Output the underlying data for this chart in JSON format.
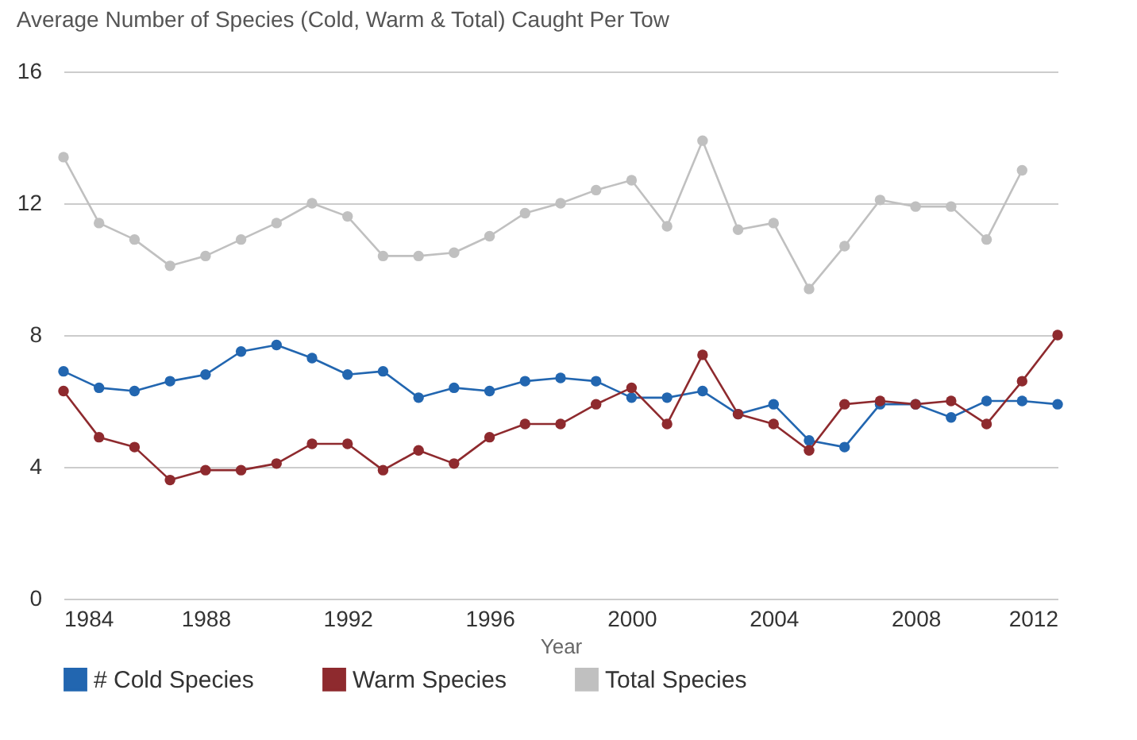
{
  "chart_data": {
    "type": "line",
    "title": "Average Number of Species (Cold, Warm & Total) Caught Per Tow",
    "xlabel": "Year",
    "x": [
      1984,
      1985,
      1986,
      1987,
      1988,
      1989,
      1990,
      1991,
      1992,
      1993,
      1994,
      1995,
      1996,
      1997,
      1998,
      1999,
      2000,
      2001,
      2002,
      2003,
      2004,
      2005,
      2006,
      2007,
      2008,
      2009,
      2010,
      2011,
      2012
    ],
    "series": [
      {
        "name": "# Cold Species",
        "color": "#2266b0",
        "values": [
          6.9,
          6.4,
          6.3,
          6.6,
          6.8,
          7.5,
          7.7,
          7.3,
          6.8,
          6.9,
          6.1,
          6.4,
          6.3,
          6.6,
          6.7,
          6.6,
          6.1,
          6.1,
          6.3,
          5.6,
          5.9,
          4.8,
          4.6,
          5.9,
          5.9,
          5.5,
          6.0,
          6.0,
          5.9
        ]
      },
      {
        "name": "Warm Species",
        "color": "#8e2a2e",
        "values": [
          6.3,
          4.9,
          4.6,
          3.6,
          3.9,
          3.9,
          4.1,
          4.7,
          4.7,
          3.9,
          4.5,
          4.1,
          4.9,
          5.3,
          5.3,
          5.9,
          6.4,
          5.3,
          7.4,
          5.6,
          5.3,
          4.5,
          5.9,
          6.0,
          5.9,
          6.0,
          5.3,
          6.6,
          8.0
        ]
      },
      {
        "name": "Total Species",
        "color": "#c0c0c0",
        "values": [
          13.4,
          11.4,
          10.9,
          10.1,
          10.4,
          10.9,
          11.4,
          12.0,
          11.6,
          10.4,
          10.4,
          10.5,
          11.0,
          11.7,
          12.0,
          12.4,
          12.7,
          11.3,
          13.9,
          11.2,
          11.4,
          9.4,
          10.7,
          12.1,
          11.9,
          11.9,
          10.9,
          13.0,
          null
        ]
      }
    ],
    "xlim": [
      1984,
      2012
    ],
    "xticks": [
      1984,
      1988,
      1992,
      1996,
      2000,
      2004,
      2008,
      2012
    ],
    "ylim": [
      0,
      16
    ],
    "yticks": [
      0,
      4,
      8,
      12,
      16
    ],
    "grid": "y",
    "legend": "bottom",
    "marker": "circle",
    "line_style": "solid"
  }
}
